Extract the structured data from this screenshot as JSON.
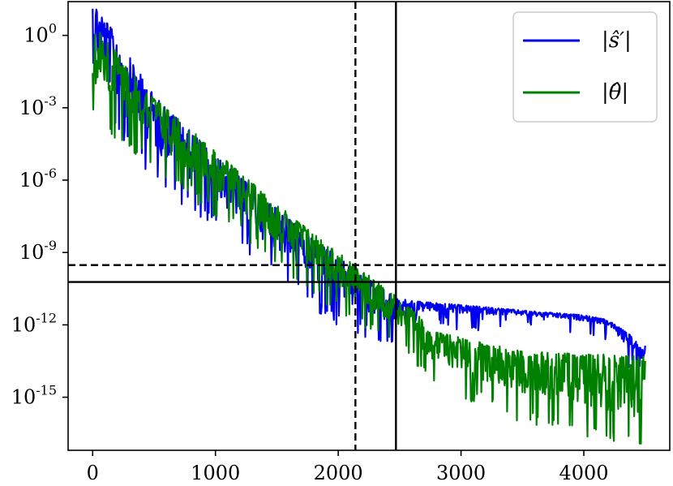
{
  "chart_data": {
    "type": "line",
    "title": "",
    "xlabel": "",
    "ylabel": "",
    "xlim": [
      -200,
      4700
    ],
    "ylim_log10": [
      -17.2,
      1.4
    ],
    "y_scale": "log",
    "grid": false,
    "legend_position": "top-right",
    "x_ticks": [
      {
        "value": 0,
        "label": "0"
      },
      {
        "value": 1000,
        "label": "1000"
      },
      {
        "value": 2000,
        "label": "2000"
      },
      {
        "value": 3000,
        "label": "3000"
      },
      {
        "value": 4000,
        "label": "4000"
      }
    ],
    "y_ticks": [
      {
        "exp": 0,
        "base": "10",
        "sup": "0"
      },
      {
        "exp": -3,
        "base": "10",
        "sup": "-3"
      },
      {
        "exp": -6,
        "base": "10",
        "sup": "-6"
      },
      {
        "exp": -9,
        "base": "10",
        "sup": "-9"
      },
      {
        "exp": -12,
        "base": "10",
        "sup": "-12"
      },
      {
        "exp": -15,
        "base": "10",
        "sup": "-15"
      }
    ],
    "reference_lines": [
      {
        "orientation": "vertical",
        "x": 2140,
        "style": "dashed"
      },
      {
        "orientation": "vertical",
        "x": 2470,
        "style": "solid"
      },
      {
        "orientation": "horizontal",
        "y": 3e-10,
        "style": "dashed"
      },
      {
        "orientation": "horizontal",
        "y": 6e-11,
        "style": "solid"
      }
    ],
    "series": [
      {
        "name": "|ŝ′|",
        "color": "#0000ee",
        "envelope_upper": [
          [
            0,
            1.5
          ],
          [
            500,
            -2.5
          ],
          [
            1000,
            -5.0
          ],
          [
            1500,
            -7.2
          ],
          [
            2000,
            -9.2
          ],
          [
            2470,
            -10.9
          ],
          [
            2600,
            -11.0
          ],
          [
            3500,
            -11.4
          ],
          [
            4000,
            -11.6
          ],
          [
            4200,
            -11.8
          ],
          [
            4400,
            -12.5
          ],
          [
            4480,
            -13.0
          ],
          [
            4500,
            -12.8
          ]
        ],
        "envelope_lower": [
          [
            0,
            -2.0
          ],
          [
            500,
            -5.5
          ],
          [
            1000,
            -7.5
          ],
          [
            1500,
            -9.5
          ],
          [
            2000,
            -11.6
          ],
          [
            2470,
            -12.4
          ],
          [
            2600,
            -11.6
          ],
          [
            3500,
            -11.7
          ],
          [
            4000,
            -11.9
          ],
          [
            4200,
            -12.1
          ],
          [
            4400,
            -13.4
          ],
          [
            4480,
            -13.6
          ],
          [
            4500,
            -13.5
          ]
        ]
      },
      {
        "name": "|θ̂|",
        "color": "#008000",
        "envelope_upper": [
          [
            0,
            0.5
          ],
          [
            500,
            -2.6
          ],
          [
            1000,
            -4.8
          ],
          [
            1500,
            -7.0
          ],
          [
            2000,
            -9.0
          ],
          [
            2470,
            -10.8
          ],
          [
            2800,
            -12.3
          ],
          [
            3500,
            -13.1
          ],
          [
            4000,
            -13.2
          ],
          [
            4500,
            -13.3
          ]
        ],
        "envelope_lower": [
          [
            0,
            -3.0
          ],
          [
            500,
            -5.0
          ],
          [
            1000,
            -7.0
          ],
          [
            1500,
            -9.0
          ],
          [
            2000,
            -11.0
          ],
          [
            2470,
            -12.4
          ],
          [
            2800,
            -14.0
          ],
          [
            3500,
            -15.5
          ],
          [
            4000,
            -16.0
          ],
          [
            4500,
            -16.8
          ]
        ]
      }
    ]
  }
}
